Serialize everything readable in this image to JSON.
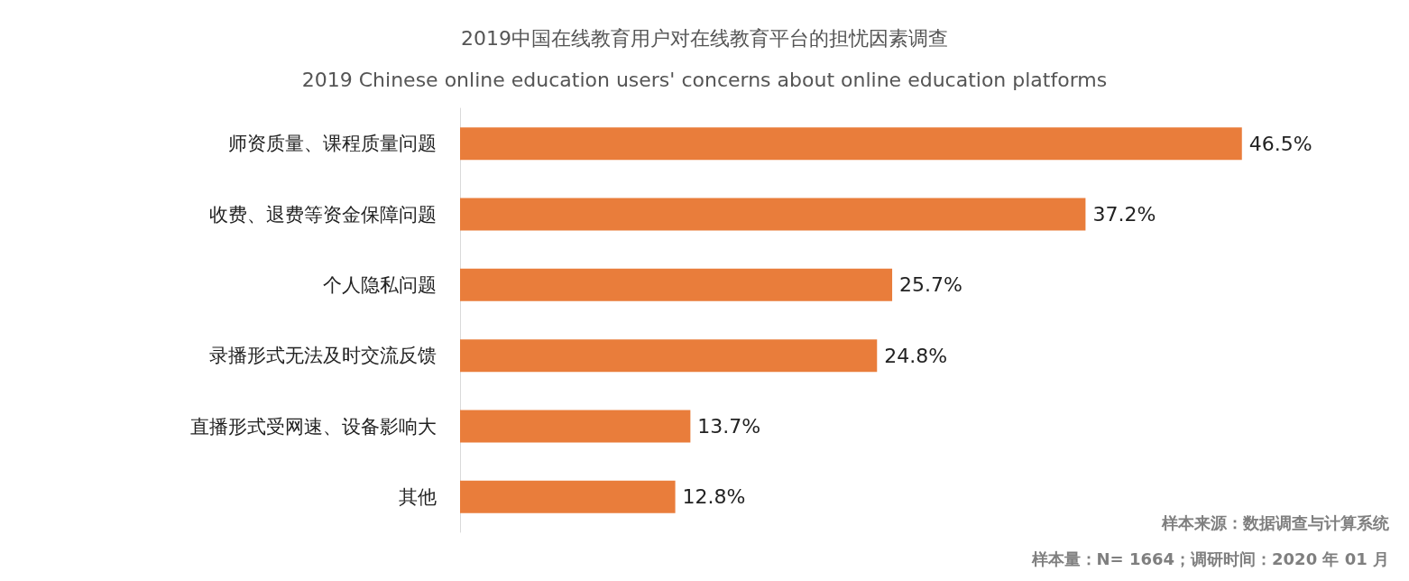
{
  "chart_data": {
    "type": "bar",
    "orientation": "horizontal",
    "title": "2019中国在线教育用户对在线教育平台的担忧因素调查",
    "subtitle": "2019 Chinese online education users' concerns about online education platforms",
    "categories": [
      "师资质量、课程质量问题",
      "收费、退费等资金保障问题",
      "个人隐私问题",
      "录播形式无法及时交流反馈",
      "直播形式受网速、设备影响大",
      "其他"
    ],
    "values": [
      46.5,
      37.2,
      25.7,
      24.8,
      13.7,
      12.8
    ],
    "value_labels": [
      "46.5%",
      "37.2%",
      "25.7%",
      "24.8%",
      "13.7%",
      "12.8%"
    ],
    "color": "#e97d3b",
    "annotations": [
      "样本来源：数据调查与计算系统",
      "样本量：N= 1664；调研时间：2020 年 01 月"
    ]
  }
}
